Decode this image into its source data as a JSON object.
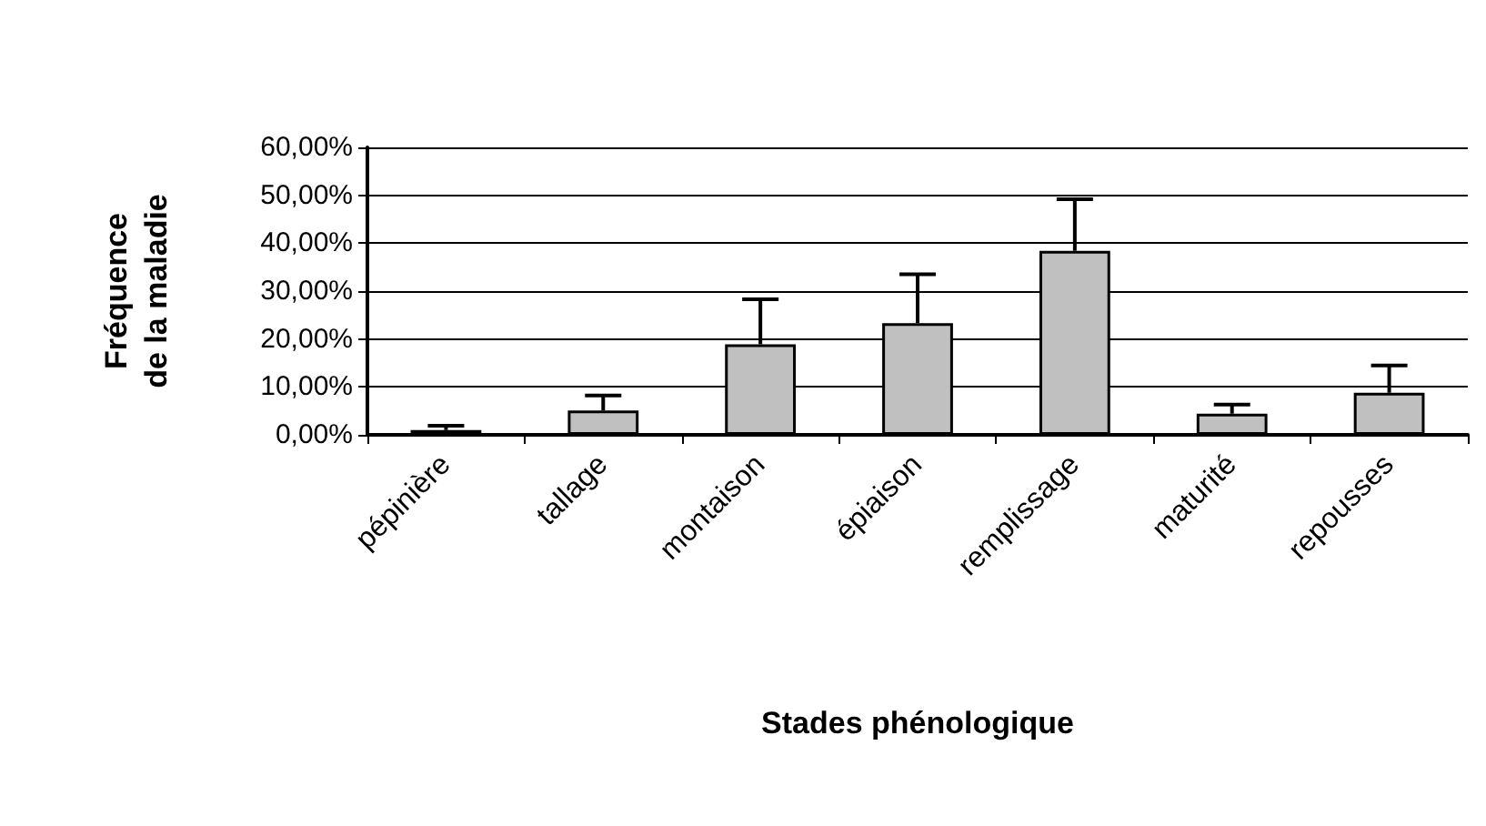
{
  "chart_data": {
    "type": "bar",
    "xlabel": "Stades phénologique",
    "ylabel": "Fréquence\nde la maladie",
    "categories": [
      "pépinière",
      "tallage",
      "montaison",
      "épiaison",
      "remplissage",
      "maturité",
      "repousses"
    ],
    "values": [
      1.0,
      5.1,
      18.9,
      23.3,
      38.4,
      4.4,
      8.8
    ],
    "errors": [
      [
        1.0,
        1.9
      ],
      [
        5.1,
        8.2
      ],
      [
        18.9,
        28.3
      ],
      [
        23.3,
        33.5
      ],
      [
        38.4,
        49.2
      ],
      [
        4.4,
        6.3
      ],
      [
        8.8,
        14.5
      ]
    ],
    "color": "#c0c0c0",
    "ylim": [
      0,
      60
    ],
    "yticks": [
      {
        "value": 0,
        "label": "0,00%"
      },
      {
        "value": 10,
        "label": "10,00%"
      },
      {
        "value": 20,
        "label": "20,00%"
      },
      {
        "value": 30,
        "label": "30,00%"
      },
      {
        "value": 40,
        "label": "40,00%"
      },
      {
        "value": 50,
        "label": "50,00%"
      },
      {
        "value": 60,
        "label": "60,00%"
      }
    ],
    "grid": "y"
  }
}
